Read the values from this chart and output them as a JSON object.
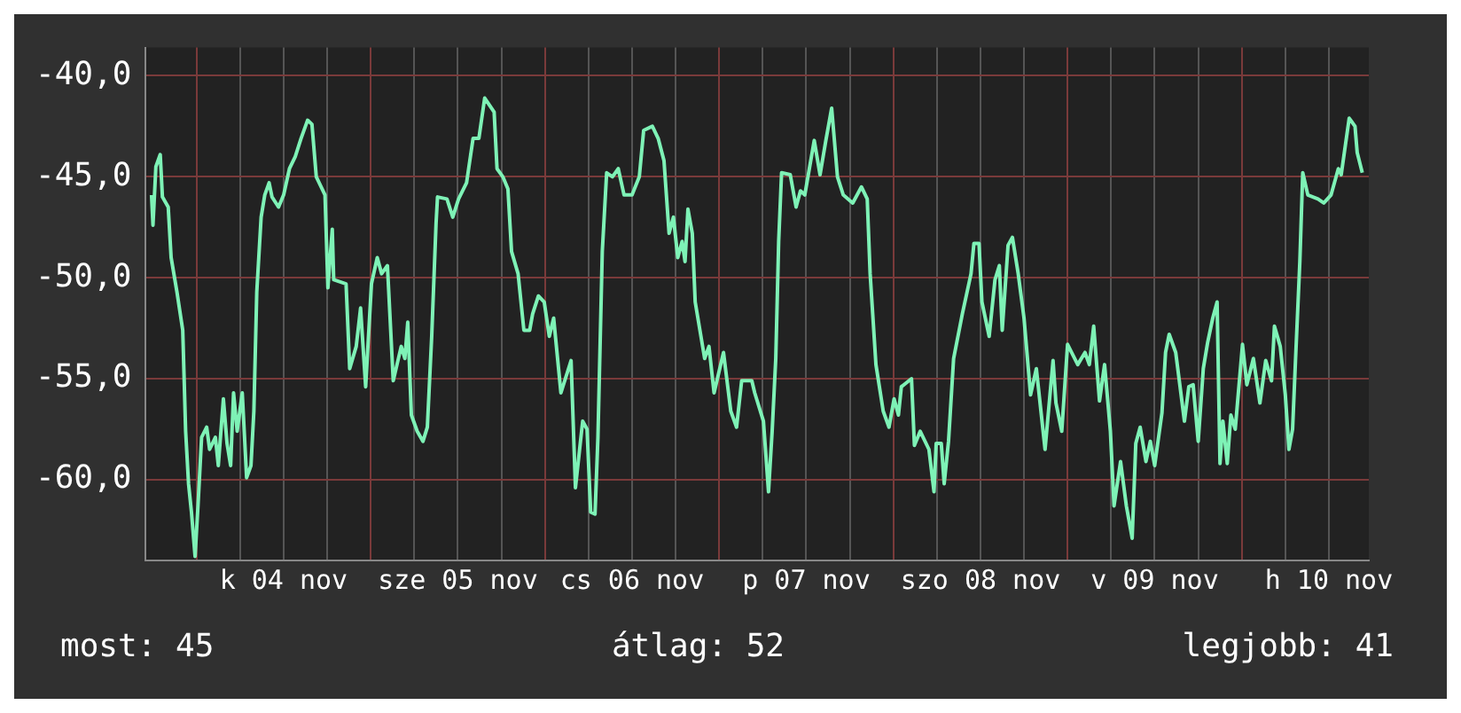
{
  "chart_data": {
    "type": "line",
    "x": [
      "--11-03T17:48",
      "--11-03T18:00",
      "--11-03T18:24",
      "--11-03T19:00",
      "--11-03T19:18",
      "--11-03T20:06",
      "--11-03T20:30",
      "--11-03T21:18",
      "--11-03T22:06",
      "--11-03T22:30",
      "--11-03T22:54",
      "--11-03T23:18",
      "--11-03T23:48",
      "--11-04T00:12",
      "--11-04T00:42",
      "--11-04T01:24",
      "--11-04T01:48",
      "--11-04T02:36",
      "--11-04T03:00",
      "--11-04T03:42",
      "--11-04T04:12",
      "--11-04T04:42",
      "--11-04T05:06",
      "--11-04T05:36",
      "--11-04T06:18",
      "--11-04T06:54",
      "--11-04T07:30",
      "--11-04T07:54",
      "--11-04T08:18",
      "--11-04T08:54",
      "--11-04T09:24",
      "--11-04T10:00",
      "--11-04T10:24",
      "--11-04T11:18",
      "--11-04T12:00",
      "--11-04T12:48",
      "--11-04T13:36",
      "--11-04T14:24",
      "--11-04T15:18",
      "--11-04T15:54",
      "--11-04T16:30",
      "--11-04T17:42",
      "--11-04T18:06",
      "--11-04T18:42",
      "--11-04T18:54",
      "--11-04T20:36",
      "--11-04T21:06",
      "--11-04T22:00",
      "--11-04T22:36",
      "--11-04T23:18",
      "--11-05T00:06",
      "--11-05T00:54",
      "--11-05T01:30",
      "--11-05T02:18",
      "--11-05T03:06",
      "--11-05T04:12",
      "--11-05T04:42",
      "--11-05T05:06",
      "--11-05T05:36",
      "--11-05T06:24",
      "--11-05T07:12",
      "--11-05T07:48",
      "--11-05T08:24",
      "--11-05T09:00",
      "--11-05T09:12",
      "--11-05T10:30",
      "--11-05T11:18",
      "--11-05T12:06",
      "--11-05T13:12",
      "--11-05T14:06",
      "--11-05T14:54",
      "--11-05T15:42",
      "--11-05T17:00",
      "--11-05T17:24",
      "--11-05T18:12",
      "--11-05T18:54",
      "--11-05T19:24",
      "--11-05T20:18",
      "--11-05T21:06",
      "--11-05T21:54",
      "--11-05T22:18",
      "--11-05T23:06",
      "--11-05T23:54",
      "--11-06T00:36",
      "--11-06T01:12",
      "--11-06T02:12",
      "--11-06T03:36",
      "--11-06T04:12",
      "--11-06T05:12",
      "--11-06T05:48",
      "--11-06T06:18",
      "--11-06T06:54",
      "--11-06T07:18",
      "--11-06T07:54",
      "--11-06T08:30",
      "--11-06T09:18",
      "--11-06T10:06",
      "--11-06T10:54",
      "--11-06T12:00",
      "--11-06T13:00",
      "--11-06T13:36",
      "--11-06T14:48",
      "--11-06T15:36",
      "--11-06T16:24",
      "--11-06T17:06",
      "--11-06T17:42",
      "--11-06T18:18",
      "--11-06T18:54",
      "--11-06T19:18",
      "--11-06T19:42",
      "--11-06T20:18",
      "--11-06T20:42",
      "--11-06T22:00",
      "--11-06T22:36",
      "--11-06T23:18",
      "--11-07T00:36",
      "--11-07T01:36",
      "--11-07T02:24",
      "--11-07T03:06",
      "--11-07T04:30",
      "--11-07T04:54",
      "--11-07T06:06",
      "--11-07T06:48",
      "--11-07T07:18",
      "--11-07T07:48",
      "--11-07T08:12",
      "--11-07T08:36",
      "--11-07T09:48",
      "--11-07T10:36",
      "--11-07T11:12",
      "--11-07T11:48",
      "--11-07T13:06",
      "--11-07T13:54",
      "--11-07T14:42",
      "--11-07T15:30",
      "--11-07T16:18",
      "--11-07T17:06",
      "--11-07T18:24",
      "--11-07T19:36",
      "--11-07T20:24",
      "--11-07T20:48",
      "--11-07T21:36",
      "--11-07T22:36",
      "--11-07T23:24",
      "--11-08T00:06",
      "--11-08T00:42",
      "--11-08T01:06",
      "--11-08T02:30",
      "--11-08T02:54",
      "--11-08T03:42",
      "--11-08T04:54",
      "--11-08T05:36",
      "--11-08T05:54",
      "--11-08T06:36",
      "--11-08T07:00",
      "--11-08T07:36",
      "--11-08T08:18",
      "--11-08T09:30",
      "--11-08T10:42",
      "--11-08T11:06",
      "--11-08T11:48",
      "--11-08T12:12",
      "--11-08T13:12",
      "--11-08T14:00",
      "--11-08T14:36",
      "--11-08T15:00",
      "--11-08T15:48",
      "--11-08T16:24",
      "--11-08T17:12",
      "--11-08T18:00",
      "--11-08T18:54",
      "--11-08T19:42",
      "--11-08T20:54",
      "--11-08T22:00",
      "--11-08T22:24",
      "--11-08T23:12",
      "--11-09T00:00",
      "--11-09T01:24",
      "--11-09T02:24",
      "--11-09T03:00",
      "--11-09T03:36",
      "--11-09T04:24",
      "--11-09T05:06",
      "--11-09T05:54",
      "--11-09T06:24",
      "--11-09T07:18",
      "--11-09T08:06",
      "--11-09T08:54",
      "--11-09T09:24",
      "--11-09T10:00",
      "--11-09T10:48",
      "--11-09T11:24",
      "--11-09T12:00",
      "--11-09T13:00",
      "--11-09T13:30",
      "--11-09T14:00",
      "--11-09T14:54",
      "--11-09T16:06",
      "--11-09T16:42",
      "--11-09T17:18",
      "--11-09T18:00",
      "--11-09T18:42",
      "--11-09T19:18",
      "--11-09T20:00",
      "--11-09T20:36",
      "--11-09T21:00",
      "--11-09T21:24",
      "--11-09T22:00",
      "--11-09T22:30",
      "--11-09T23:06",
      "--11-10T00:06",
      "--11-10T00:42",
      "--11-10T01:36",
      "--11-10T02:30",
      "--11-10T03:18",
      "--11-10T04:06",
      "--11-10T04:30",
      "--11-10T05:18",
      "--11-10T06:00",
      "--11-10T06:30",
      "--11-10T07:00",
      "--11-10T07:24",
      "--11-10T08:00",
      "--11-10T08:24",
      "--11-10T09:06",
      "--11-10T10:30",
      "--11-10T11:18",
      "--11-10T12:18",
      "--11-10T13:18",
      "--11-10T13:42",
      "--11-10T14:48",
      "--11-10T15:36",
      "--11-10T15:54",
      "--11-10T16:36"
    ],
    "series": [
      {
        "color": "#7ef2b6",
        "values": [
          -45.9,
          -47.4,
          -44.5,
          -43.9,
          -46.0,
          -46.5,
          -49.0,
          -50.7,
          -52.6,
          -57.6,
          -60.2,
          -61.6,
          -63.8,
          -61.3,
          -57.9,
          -57.4,
          -58.5,
          -57.9,
          -59.3,
          -56.0,
          -58.2,
          -59.3,
          -55.7,
          -57.6,
          -55.7,
          -59.9,
          -59.3,
          -56.6,
          -50.7,
          -47.0,
          -45.9,
          -45.3,
          -46.0,
          -46.5,
          -45.9,
          -44.6,
          -44.0,
          -43.1,
          -42.2,
          -42.4,
          -45.0,
          -45.9,
          -50.5,
          -47.6,
          -50.1,
          -50.3,
          -54.5,
          -53.4,
          -51.5,
          -55.4,
          -50.3,
          -49.0,
          -49.8,
          -49.4,
          -55.1,
          -53.4,
          -54.0,
          -52.2,
          -56.8,
          -57.6,
          -58.1,
          -57.4,
          -52.9,
          -47.3,
          -46.0,
          -46.1,
          -47.0,
          -46.1,
          -45.3,
          -43.1,
          -43.1,
          -41.1,
          -41.8,
          -44.6,
          -45.0,
          -45.6,
          -48.7,
          -49.8,
          -52.6,
          -52.6,
          -51.8,
          -50.9,
          -51.2,
          -52.9,
          -52.0,
          -55.7,
          -54.1,
          -60.4,
          -57.1,
          -57.5,
          -61.6,
          -61.7,
          -57.9,
          -48.7,
          -44.8,
          -45.0,
          -44.6,
          -45.9,
          -45.9,
          -45.0,
          -42.7,
          -42.5,
          -43.1,
          -44.2,
          -47.8,
          -47.0,
          -49.0,
          -48.2,
          -49.2,
          -46.6,
          -47.8,
          -51.2,
          -54.0,
          -53.4,
          -55.7,
          -53.7,
          -56.6,
          -57.4,
          -55.1,
          -55.1,
          -55.7,
          -57.1,
          -60.6,
          -57.6,
          -54.0,
          -48.2,
          -44.8,
          -44.9,
          -46.5,
          -45.7,
          -45.9,
          -43.2,
          -44.9,
          -43.2,
          -41.6,
          -45.0,
          -45.9,
          -46.3,
          -45.5,
          -46.1,
          -49.8,
          -54.3,
          -56.6,
          -57.4,
          -56.0,
          -56.8,
          -55.4,
          -55.0,
          -58.3,
          -57.6,
          -58.5,
          -60.6,
          -58.2,
          -58.2,
          -60.2,
          -58.1,
          -54.0,
          -51.8,
          -49.8,
          -48.3,
          -48.3,
          -51.2,
          -52.9,
          -50.1,
          -49.4,
          -52.6,
          -48.4,
          -48.0,
          -49.8,
          -52.0,
          -55.8,
          -54.5,
          -58.5,
          -54.1,
          -56.2,
          -57.6,
          -53.3,
          -54.3,
          -53.7,
          -54.3,
          -52.4,
          -56.1,
          -54.3,
          -57.6,
          -61.3,
          -59.1,
          -61.3,
          -62.9,
          -58.2,
          -57.4,
          -59.1,
          -58.1,
          -59.3,
          -56.7,
          -53.7,
          -52.8,
          -53.7,
          -57.1,
          -55.4,
          -55.3,
          -58.1,
          -54.5,
          -53.2,
          -52.0,
          -51.2,
          -59.2,
          -57.1,
          -59.2,
          -56.8,
          -57.5,
          -53.3,
          -55.3,
          -54.0,
          -56.2,
          -54.1,
          -55.1,
          -52.4,
          -53.4,
          -55.8,
          -58.5,
          -57.5,
          -54.1,
          -49.2,
          -44.8,
          -45.9,
          -46.1,
          -46.3,
          -45.9,
          -44.6,
          -44.9,
          -42.1,
          -42.5,
          -43.8,
          -44.8
        ]
      }
    ],
    "xlim": [
      "--11-03T17:00",
      "--11-10T17:30"
    ],
    "xticks": [
      {
        "value": "--11-04T00:00",
        "label": null
      },
      {
        "value": "--11-04T06:00",
        "label": null
      },
      {
        "value": "--11-04T12:00",
        "label": "k 04 nov"
      },
      {
        "value": "--11-04T18:00",
        "label": null
      },
      {
        "value": "--11-05T00:00",
        "label": null
      },
      {
        "value": "--11-05T06:00",
        "label": null
      },
      {
        "value": "--11-05T12:00",
        "label": "sze 05 nov"
      },
      {
        "value": "--11-05T18:00",
        "label": null
      },
      {
        "value": "--11-06T00:00",
        "label": null
      },
      {
        "value": "--11-06T06:00",
        "label": null
      },
      {
        "value": "--11-06T12:00",
        "label": "cs 06 nov"
      },
      {
        "value": "--11-06T18:00",
        "label": null
      },
      {
        "value": "--11-07T00:00",
        "label": null
      },
      {
        "value": "--11-07T06:00",
        "label": null
      },
      {
        "value": "--11-07T12:00",
        "label": "p 07 nov"
      },
      {
        "value": "--11-07T18:00",
        "label": null
      },
      {
        "value": "--11-08T00:00",
        "label": null
      },
      {
        "value": "--11-08T06:00",
        "label": null
      },
      {
        "value": "--11-08T12:00",
        "label": "szo 08 nov"
      },
      {
        "value": "--11-08T18:00",
        "label": null
      },
      {
        "value": "--11-09T00:00",
        "label": null
      },
      {
        "value": "--11-09T06:00",
        "label": null
      },
      {
        "value": "--11-09T12:00",
        "label": "v 09 nov"
      },
      {
        "value": "--11-09T18:00",
        "label": null
      },
      {
        "value": "--11-10T00:00",
        "label": null
      },
      {
        "value": "--11-10T06:00",
        "label": null
      },
      {
        "value": "--11-10T12:00",
        "label": "h 10 nov"
      }
    ],
    "ylim": [
      -64,
      -38.6
    ],
    "yticks": [
      {
        "value": -60,
        "label": "-60,0"
      },
      {
        "value": -55,
        "label": "-55,0"
      },
      {
        "value": -50,
        "label": "-50,0"
      },
      {
        "value": -45,
        "label": "-45,0"
      },
      {
        "value": -40,
        "label": "-40,0"
      }
    ],
    "grid": true,
    "legend": false,
    "marker": "none",
    "line_style": "solid",
    "annotations": [
      "most: 45",
      "átlag: 52",
      "legjobb: 41"
    ]
  }
}
